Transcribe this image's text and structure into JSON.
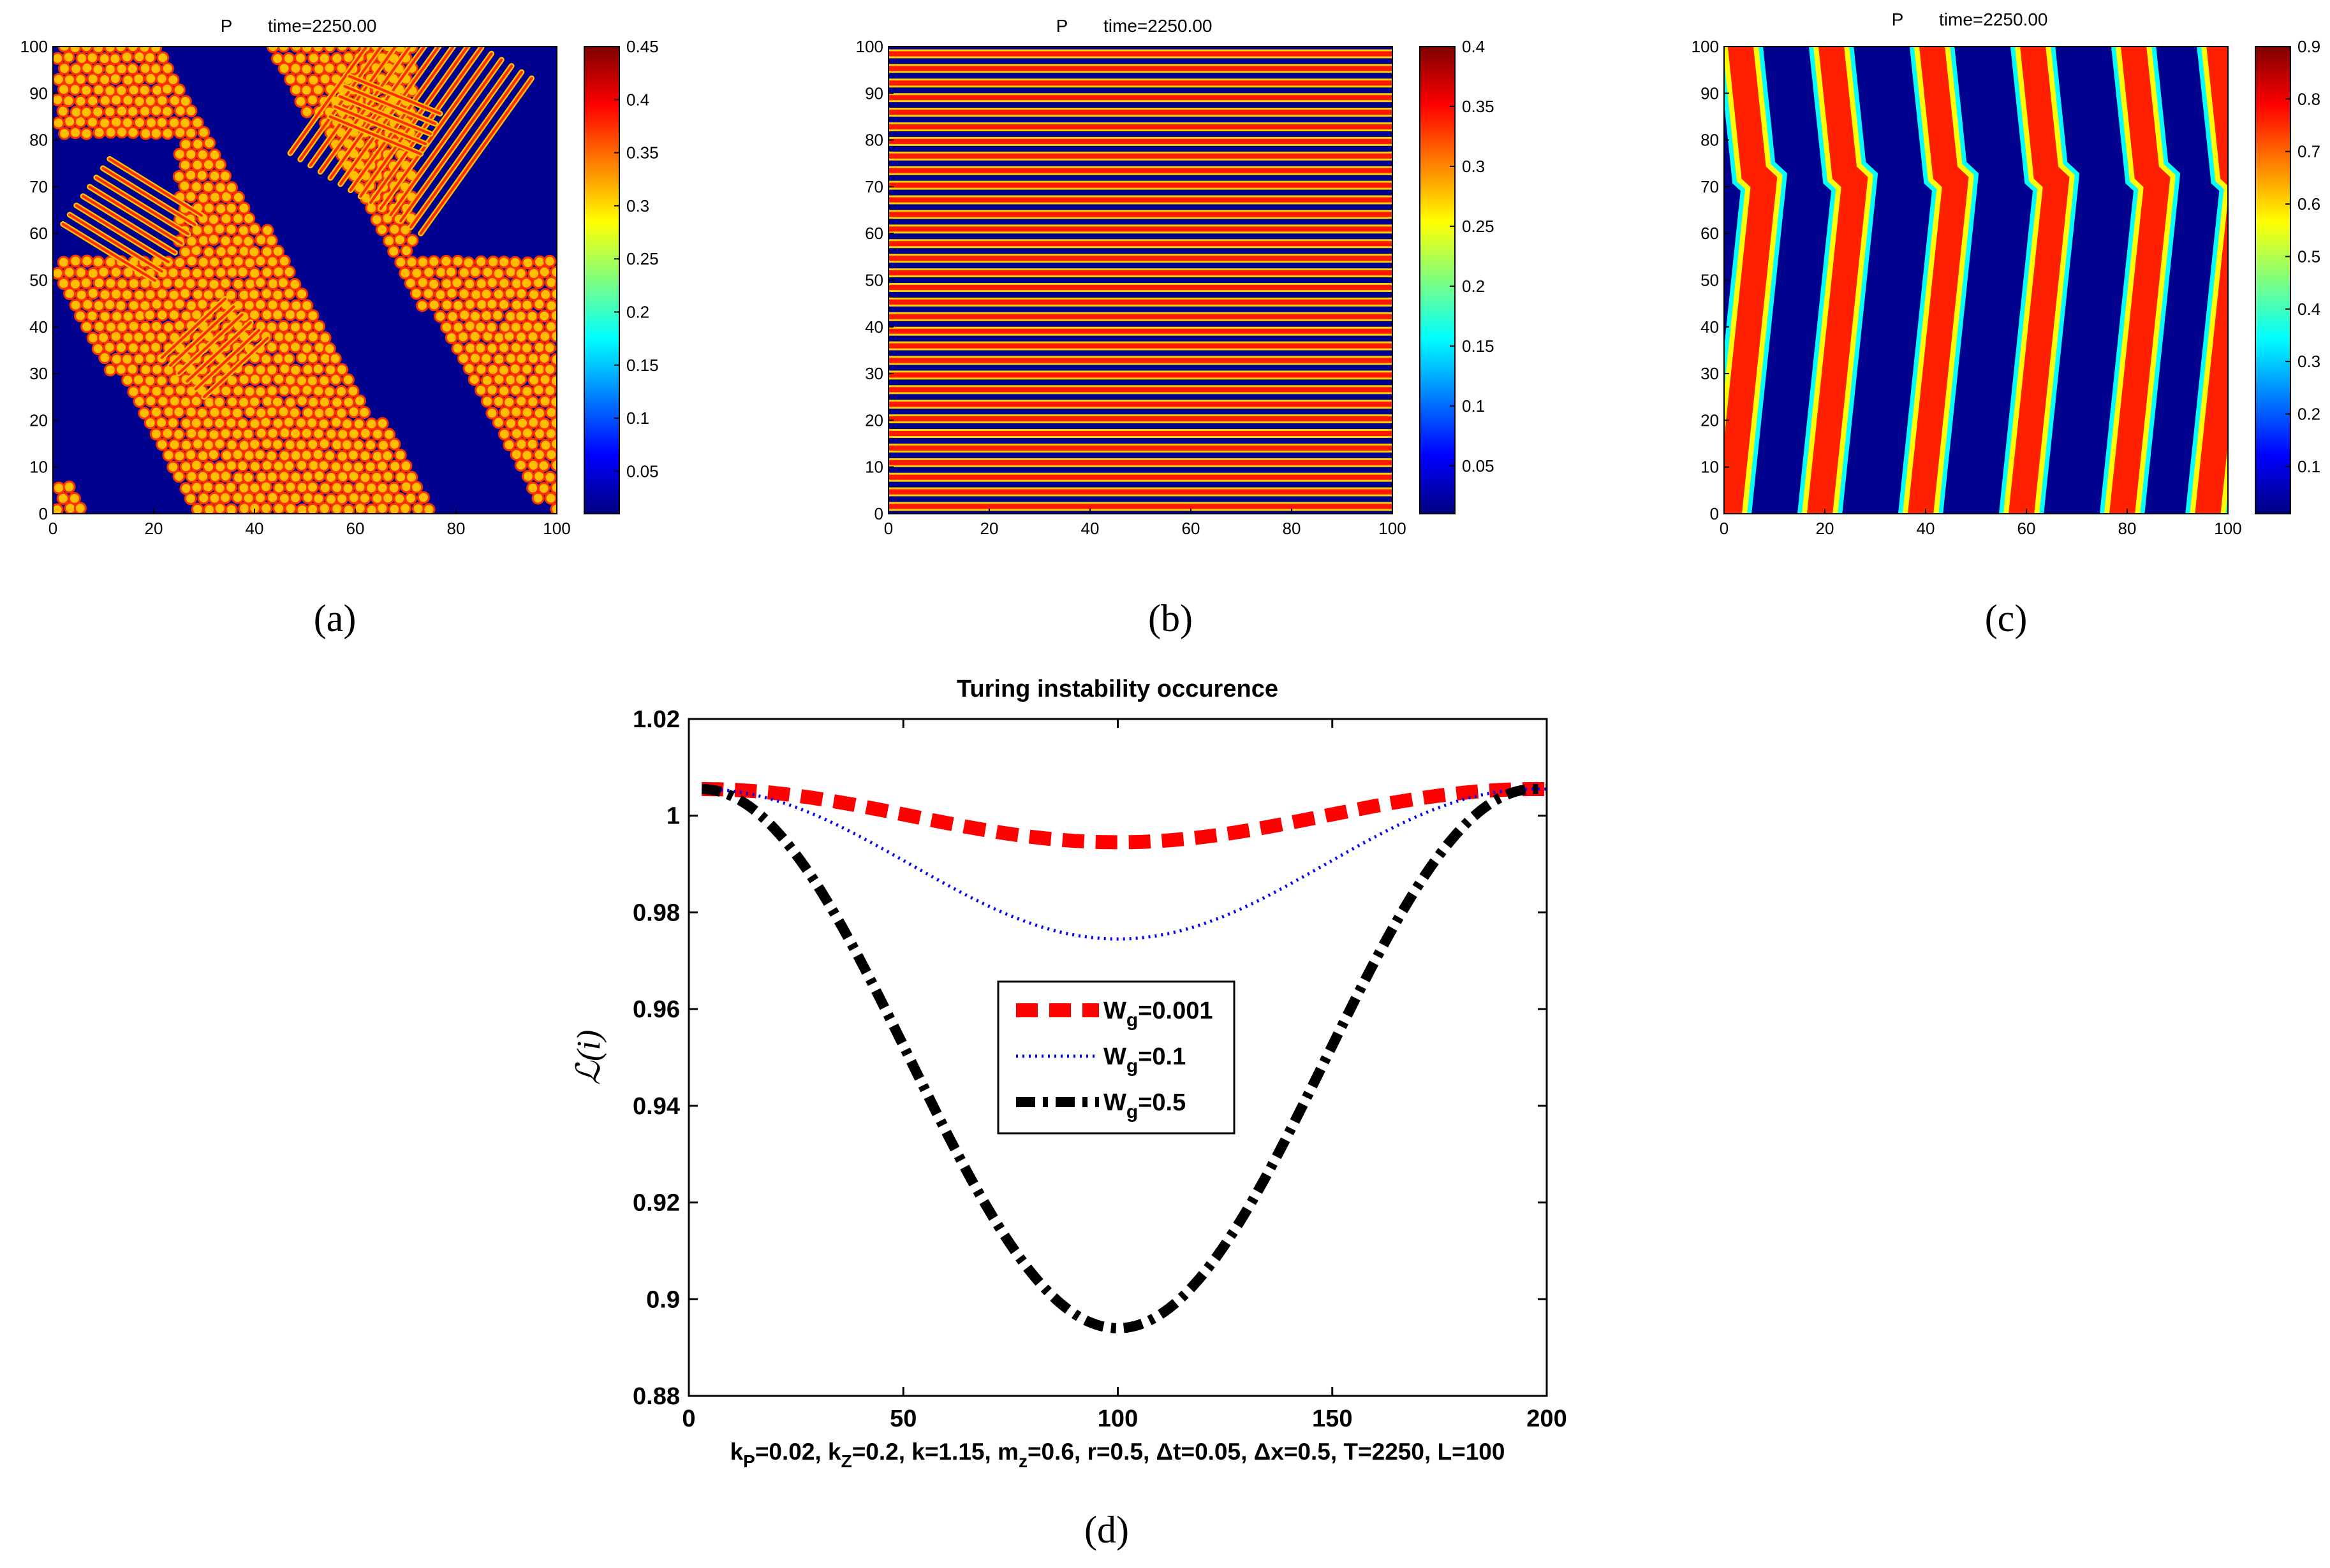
{
  "figure": {
    "panel_labels": [
      "(a)",
      "(b)",
      "(c)",
      "(d)"
    ],
    "colormap_stops": [
      "#00007f",
      "#0000ff",
      "#007fff",
      "#00ffff",
      "#7fff7f",
      "#ffff00",
      "#ff7f00",
      "#ff0000",
      "#7f0000"
    ],
    "background_color": "#00008f"
  },
  "chart_data": [
    {
      "type": "heatmap",
      "panel": "a",
      "title_var": "P",
      "title_time": "time=2250.00",
      "x_ticks": [
        "0",
        "20",
        "40",
        "60",
        "80",
        "100"
      ],
      "y_ticks": [
        "0",
        "10",
        "20",
        "30",
        "40",
        "50",
        "60",
        "70",
        "80",
        "90",
        "100"
      ],
      "xlim": [
        0,
        100
      ],
      "ylim": [
        0,
        100
      ],
      "colorbar_ticks": [
        "0.05",
        "0.1",
        "0.15",
        "0.2",
        "0.25",
        "0.3",
        "0.35",
        "0.4",
        "0.45"
      ],
      "colorbar_range": [
        0.01,
        0.45
      ],
      "pattern": "spots and labyrinth stripes"
    },
    {
      "type": "heatmap",
      "panel": "b",
      "title_var": "P",
      "title_time": "time=2250.00",
      "x_ticks": [
        "0",
        "20",
        "40",
        "60",
        "80",
        "100"
      ],
      "y_ticks": [
        "0",
        "10",
        "20",
        "30",
        "40",
        "50",
        "60",
        "70",
        "80",
        "90",
        "100"
      ],
      "xlim": [
        0,
        100
      ],
      "ylim": [
        0,
        100
      ],
      "colorbar_ticks": [
        "0.05",
        "0.1",
        "0.15",
        "0.2",
        "0.25",
        "0.3",
        "0.35",
        "0.4"
      ],
      "colorbar_range": [
        0.01,
        0.4
      ],
      "pattern": "horizontal stripes",
      "stripe_count": 32
    },
    {
      "type": "heatmap",
      "panel": "c",
      "title_var": "P",
      "title_time": "time=2250.00",
      "x_ticks": [
        "0",
        "20",
        "40",
        "60",
        "80",
        "100"
      ],
      "y_ticks": [
        "0",
        "10",
        "20",
        "30",
        "40",
        "50",
        "60",
        "70",
        "80",
        "90",
        "100"
      ],
      "xlim": [
        0,
        100
      ],
      "ylim": [
        0,
        100
      ],
      "colorbar_ticks": [
        "0.1",
        "0.2",
        "0.3",
        "0.4",
        "0.5",
        "0.6",
        "0.7",
        "0.8",
        "0.9"
      ],
      "colorbar_range": [
        0.01,
        0.9
      ],
      "pattern": "vertical wavy bands",
      "band_centers_at_y50": [
        4,
        22,
        42,
        62,
        82,
        99
      ]
    },
    {
      "type": "line",
      "panel": "d",
      "title": "Turing instability occurence",
      "ylabel": "ℒ(i)",
      "xlabel_params": [
        {
          "t": "k"
        },
        {
          "sub": "P"
        },
        {
          "t": "=0.02, k"
        },
        {
          "sub": "Z"
        },
        {
          "t": "=0.2, k=1.15, m"
        },
        {
          "sub": "z"
        },
        {
          "t": "=0.6, r=0.5, Δt=0.05, Δx=0.5, T=2250, L=100"
        }
      ],
      "xlim": [
        0,
        200
      ],
      "ylim": [
        0.88,
        1.02
      ],
      "x_ticks": [
        "0",
        "50",
        "100",
        "150",
        "200"
      ],
      "y_ticks": [
        "0.88",
        "0.9",
        "0.92",
        "0.94",
        "0.96",
        "0.98",
        "1",
        "1.02"
      ],
      "series": [
        {
          "name": "W_g=0.001",
          "label_main": "W",
          "label_sub": "g",
          "label_value": "=0.001",
          "color": "#ff0000",
          "style": "dashed-thick",
          "x_edge": 3,
          "x_center": 100,
          "y_edge": 1.0055,
          "y_min": 0.9945
        },
        {
          "name": "W_g=0.1",
          "label_main": "W",
          "label_sub": "g",
          "label_value": "=0.1",
          "color": "#0000ff",
          "style": "dotted",
          "x_edge": 3,
          "x_center": 100,
          "y_edge": 1.0055,
          "y_min": 0.9745
        },
        {
          "name": "W_g=0.5",
          "label_main": "W",
          "label_sub": "g",
          "label_value": "=0.5",
          "color": "#000000",
          "style": "dash-dot-thick",
          "x_edge": 3,
          "x_center": 100,
          "y_edge": 1.0055,
          "y_min": 0.894
        }
      ],
      "legend_position": "center"
    }
  ]
}
